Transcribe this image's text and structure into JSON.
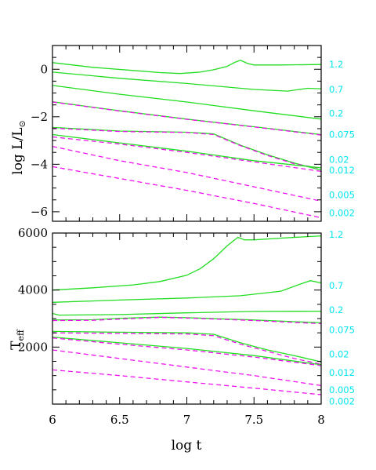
{
  "colors": {
    "solid": "#22dd22",
    "dashed": "#ee11ee",
    "mass_label": "#00e5ee",
    "axes": "#000000"
  },
  "chart_data": [
    {
      "type": "line",
      "panel": "top",
      "xlabel": "",
      "ylabel": "log L/L⊙",
      "ylabel_main": "log  L/L",
      "ylabel_sub": "⊙",
      "xlim": [
        6,
        8
      ],
      "ylim": [
        -6.4,
        1.0
      ],
      "yticks": [
        0,
        -2,
        -4,
        -6
      ],
      "ytick_labels": [
        "0",
        "−2",
        "−4",
        "−6"
      ],
      "mass_labels": [
        {
          "text": "1.2",
          "y": 0.2
        },
        {
          "text": "0.7",
          "y": -0.85
        },
        {
          "text": "0.2",
          "y": -1.85
        },
        {
          "text": "0.075",
          "y": -2.75
        },
        {
          "text": "0.02",
          "y": -3.8
        },
        {
          "text": "0.012",
          "y": -4.25
        },
        {
          "text": "0.005",
          "y": -5.3
        },
        {
          "text": "0.002",
          "y": -6.05
        }
      ],
      "series": [
        {
          "style": "solid",
          "points": [
            [
              6.0,
              0.28
            ],
            [
              6.3,
              0.08
            ],
            [
              6.6,
              -0.05
            ],
            [
              6.8,
              -0.14
            ],
            [
              6.95,
              -0.18
            ],
            [
              7.1,
              -0.12
            ],
            [
              7.2,
              -0.02
            ],
            [
              7.3,
              0.12
            ],
            [
              7.36,
              0.3
            ],
            [
              7.4,
              0.38
            ],
            [
              7.45,
              0.25
            ],
            [
              7.5,
              0.18
            ],
            [
              7.7,
              0.18
            ],
            [
              8.0,
              0.2
            ]
          ]
        },
        {
          "style": "solid",
          "points": [
            [
              6.0,
              -0.12
            ],
            [
              6.5,
              -0.38
            ],
            [
              7.0,
              -0.6
            ],
            [
              7.5,
              -0.85
            ],
            [
              7.75,
              -0.92
            ],
            [
              7.9,
              -0.8
            ],
            [
              8.0,
              -0.82
            ]
          ]
        },
        {
          "style": "solid",
          "points": [
            [
              6.0,
              -0.68
            ],
            [
              6.5,
              -1.05
            ],
            [
              7.0,
              -1.38
            ],
            [
              7.5,
              -1.75
            ],
            [
              8.0,
              -2.1
            ]
          ]
        },
        {
          "style": "solid",
          "points": [
            [
              6.0,
              -1.37
            ],
            [
              6.5,
              -1.75
            ],
            [
              7.0,
              -2.1
            ],
            [
              7.5,
              -2.42
            ],
            [
              8.0,
              -2.75
            ]
          ]
        },
        {
          "style": "dashed",
          "points": [
            [
              6.0,
              -1.38
            ],
            [
              6.5,
              -1.76
            ],
            [
              7.0,
              -2.11
            ],
            [
              7.5,
              -2.43
            ],
            [
              8.0,
              -2.77
            ]
          ]
        },
        {
          "style": "solid",
          "points": [
            [
              6.0,
              -2.45
            ],
            [
              6.5,
              -2.6
            ],
            [
              7.0,
              -2.65
            ],
            [
              7.2,
              -2.72
            ],
            [
              7.4,
              -3.2
            ],
            [
              7.6,
              -3.6
            ],
            [
              7.8,
              -3.95
            ],
            [
              8.0,
              -4.25
            ]
          ]
        },
        {
          "style": "dashed",
          "points": [
            [
              6.0,
              -2.48
            ],
            [
              6.5,
              -2.62
            ],
            [
              7.0,
              -2.66
            ],
            [
              7.2,
              -2.75
            ],
            [
              7.4,
              -3.22
            ],
            [
              7.6,
              -3.63
            ],
            [
              7.8,
              -3.98
            ],
            [
              8.0,
              -4.18
            ]
          ]
        },
        {
          "style": "solid",
          "points": [
            [
              6.0,
              -2.75
            ],
            [
              6.5,
              -3.1
            ],
            [
              7.0,
              -3.45
            ],
            [
              7.5,
              -3.85
            ],
            [
              8.0,
              -4.15
            ]
          ]
        },
        {
          "style": "dashed",
          "points": [
            [
              6.0,
              -2.85
            ],
            [
              6.5,
              -3.15
            ],
            [
              7.0,
              -3.5
            ],
            [
              7.5,
              -3.9
            ],
            [
              8.0,
              -4.3
            ]
          ]
        },
        {
          "style": "dashed",
          "points": [
            [
              6.0,
              -3.25
            ],
            [
              6.5,
              -3.85
            ],
            [
              7.0,
              -4.35
            ],
            [
              7.5,
              -4.95
            ],
            [
              8.0,
              -5.55
            ]
          ]
        },
        {
          "style": "dashed",
          "points": [
            [
              6.0,
              -4.1
            ],
            [
              6.5,
              -4.6
            ],
            [
              7.0,
              -5.1
            ],
            [
              7.5,
              -5.65
            ],
            [
              8.0,
              -6.25
            ]
          ]
        }
      ]
    },
    {
      "type": "line",
      "panel": "bottom",
      "xlabel": "log t",
      "ylabel": "Teff",
      "ylabel_main": "T",
      "ylabel_sub": "eff",
      "xlim": [
        6,
        8
      ],
      "ylim": [
        0,
        6000
      ],
      "xticks": [
        6,
        6.5,
        7,
        7.5,
        8
      ],
      "xtick_labels": [
        "6",
        "6.5",
        "7",
        "7.5",
        "8"
      ],
      "yticks": [
        2000,
        4000,
        6000
      ],
      "ytick_labels": [
        "2000",
        "4000",
        "6000"
      ],
      "mass_labels": [
        {
          "text": "1.2",
          "y": 5950
        },
        {
          "text": "0.7",
          "y": 4150
        },
        {
          "text": "0.2",
          "y": 3300
        },
        {
          "text": "0.075",
          "y": 2600
        },
        {
          "text": "0.02",
          "y": 1750
        },
        {
          "text": "0.012",
          "y": 1100
        },
        {
          "text": "0.005",
          "y": 500
        },
        {
          "text": "0.002",
          "y": 100
        }
      ],
      "series": [
        {
          "style": "solid",
          "points": [
            [
              6.0,
              4000
            ],
            [
              6.3,
              4080
            ],
            [
              6.6,
              4180
            ],
            [
              6.8,
              4300
            ],
            [
              7.0,
              4520
            ],
            [
              7.1,
              4750
            ],
            [
              7.2,
              5100
            ],
            [
              7.3,
              5550
            ],
            [
              7.38,
              5850
            ],
            [
              7.43,
              5760
            ],
            [
              7.5,
              5760
            ],
            [
              7.7,
              5820
            ],
            [
              8.0,
              5900
            ]
          ]
        },
        {
          "style": "solid",
          "points": [
            [
              6.0,
              3570
            ],
            [
              6.5,
              3650
            ],
            [
              7.0,
              3720
            ],
            [
              7.4,
              3800
            ],
            [
              7.7,
              3960
            ],
            [
              7.85,
              4220
            ],
            [
              7.92,
              4330
            ],
            [
              8.0,
              4250
            ]
          ]
        },
        {
          "style": "solid",
          "points": [
            [
              6.0,
              3180
            ],
            [
              6.05,
              3120
            ],
            [
              6.5,
              3140
            ],
            [
              7.0,
              3200
            ],
            [
              7.5,
              3250
            ],
            [
              8.0,
              3260
            ]
          ]
        },
        {
          "style": "solid",
          "points": [
            [
              6.0,
              2950
            ],
            [
              6.3,
              2960
            ],
            [
              6.5,
              3010
            ],
            [
              6.8,
              3050
            ],
            [
              7.0,
              3030
            ],
            [
              7.5,
              2950
            ],
            [
              8.0,
              2850
            ]
          ]
        },
        {
          "style": "dashed",
          "points": [
            [
              6.0,
              2930
            ],
            [
              6.3,
              2940
            ],
            [
              6.5,
              2980
            ],
            [
              6.8,
              3040
            ],
            [
              7.0,
              3020
            ],
            [
              7.5,
              2930
            ],
            [
              8.0,
              2820
            ]
          ]
        },
        {
          "style": "solid",
          "points": [
            [
              6.0,
              2550
            ],
            [
              6.5,
              2520
            ],
            [
              7.0,
              2500
            ],
            [
              7.2,
              2450
            ],
            [
              7.4,
              2150
            ],
            [
              7.6,
              1900
            ],
            [
              7.8,
              1700
            ],
            [
              8.0,
              1480
            ]
          ]
        },
        {
          "style": "dashed",
          "points": [
            [
              6.0,
              2500
            ],
            [
              6.5,
              2480
            ],
            [
              7.0,
              2460
            ],
            [
              7.2,
              2400
            ],
            [
              7.4,
              2100
            ],
            [
              7.6,
              1850
            ],
            [
              7.8,
              1600
            ],
            [
              8.0,
              1400
            ]
          ]
        },
        {
          "style": "solid",
          "points": [
            [
              6.0,
              2350
            ],
            [
              6.5,
              2150
            ],
            [
              7.0,
              1950
            ],
            [
              7.5,
              1700
            ],
            [
              8.0,
              1380
            ]
          ]
        },
        {
          "style": "dashed",
          "points": [
            [
              6.0,
              2320
            ],
            [
              6.5,
              2100
            ],
            [
              7.0,
              1900
            ],
            [
              7.5,
              1650
            ],
            [
              8.0,
              1350
            ]
          ]
        },
        {
          "style": "dashed",
          "points": [
            [
              6.0,
              1900
            ],
            [
              6.5,
              1600
            ],
            [
              7.0,
              1300
            ],
            [
              7.5,
              1000
            ],
            [
              8.0,
              650
            ]
          ]
        },
        {
          "style": "dashed",
          "points": [
            [
              6.0,
              1200
            ],
            [
              6.5,
              1000
            ],
            [
              7.0,
              780
            ],
            [
              7.5,
              560
            ],
            [
              8.0,
              330
            ]
          ]
        }
      ]
    }
  ]
}
